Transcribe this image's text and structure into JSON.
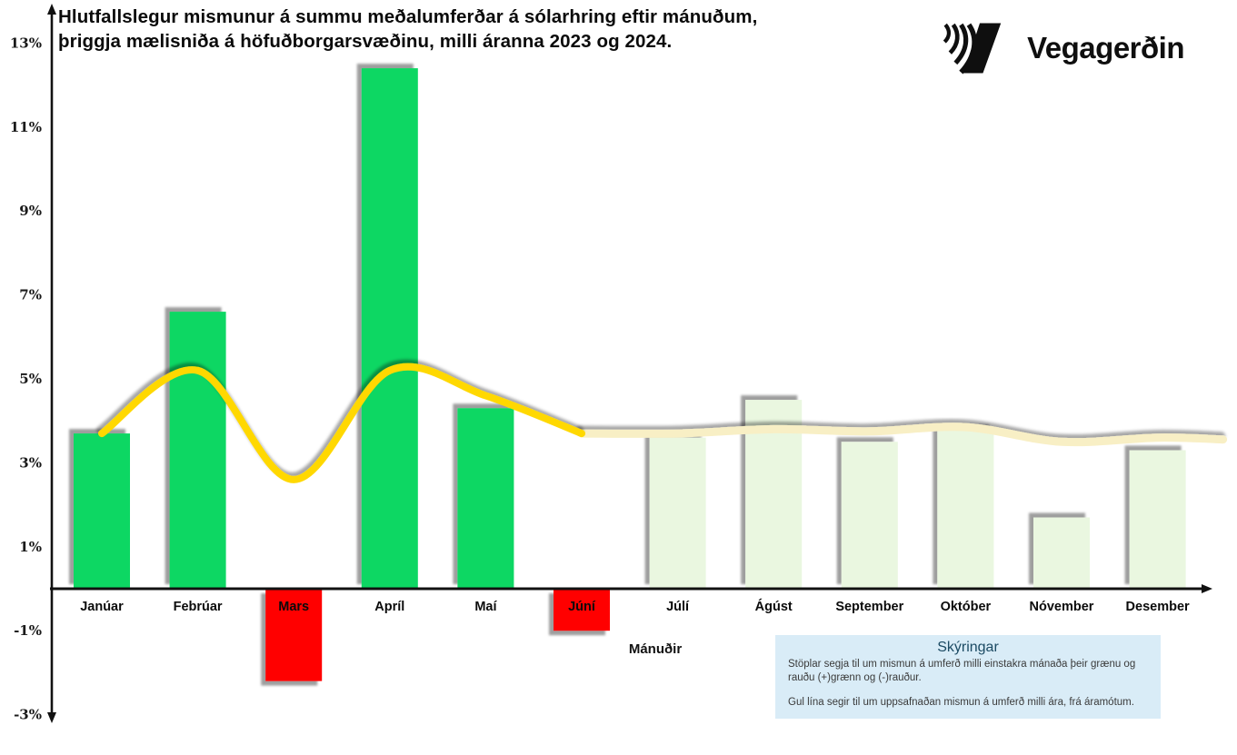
{
  "title": "Hlutfallslegur mismunur á summu meðalumferðar á sólarhring eftir mánuðum, þriggja mælisniða á höfuðborgarsvæðinu, milli áranna 2023 og 2024.",
  "logo": {
    "text": "Vegagerðin"
  },
  "axis": {
    "x_label": "Mánuðir",
    "y_ticks": [
      "13%",
      "11%",
      "9%",
      "7%",
      "5%",
      "3%",
      "1%",
      "-1%",
      "-3%"
    ]
  },
  "legend": {
    "title": "Skýringar",
    "bars_text": "Stöplar segja til um mismun á umferð milli einstakra mánaða  þeir grænu og rauðu (+)grænn og (-)rauður.",
    "line_text": "Gul lína segir til um uppsafnaðan mismun á umferð milli ára, frá áramótum."
  },
  "colors": {
    "bar_positive": "#0bd763",
    "bar_negative": "#ff0000",
    "bar_faded": "#eaf7e0",
    "line_solid": "#ffd800",
    "line_faded": "#f8efc5",
    "axis": "#111111",
    "tick_text": "#1a1a1a",
    "month_text": "#0b0b0b",
    "legend_bg": "#d9ecf7",
    "legend_title": "#1b4a63",
    "legend_text": "#3a3a3a"
  },
  "chart_data": {
    "type": "bar",
    "title": "Hlutfallslegur mismunur á summu meðalumferðar á sólarhring eftir mánuðum, þriggja mælisniða á höfuðborgarsvæðinu, milli áranna 2023 og 2024.",
    "xlabel": "Mánuðir",
    "ylabel": "",
    "ylim": [
      -3,
      13
    ],
    "ytick_values": [
      13,
      11,
      9,
      7,
      5,
      3,
      1,
      -1,
      -3
    ],
    "grid": false,
    "legend_position": "bottom-right",
    "categories": [
      "Janúar",
      "Febrúar",
      "Mars",
      "Apríl",
      "Maí",
      "Júní",
      "Júlí",
      "Ágúst",
      "September",
      "Október",
      "Nóvember",
      "Desember"
    ],
    "series": [
      {
        "name": "Mismunur á umferð milli einstakra mánaða (+)grænn og (-)rauður",
        "type": "bar",
        "values": [
          3.7,
          6.6,
          -2.2,
          12.4,
          4.3,
          -1.0,
          3.6,
          4.5,
          3.5,
          3.8,
          1.7,
          3.3
        ],
        "styles": [
          "green",
          "green",
          "red",
          "green",
          "green",
          "red",
          "faded",
          "faded",
          "faded",
          "faded",
          "faded",
          "faded"
        ]
      },
      {
        "name": "Uppsafnaður mismunur á umferð milli ára, frá áramótum (gul lína)",
        "type": "line",
        "values": [
          3.7,
          5.2,
          2.6,
          5.2,
          4.6,
          3.7,
          3.7,
          3.8,
          3.75,
          3.85,
          3.5,
          3.6
        ],
        "solid_through_index": 5
      }
    ]
  }
}
